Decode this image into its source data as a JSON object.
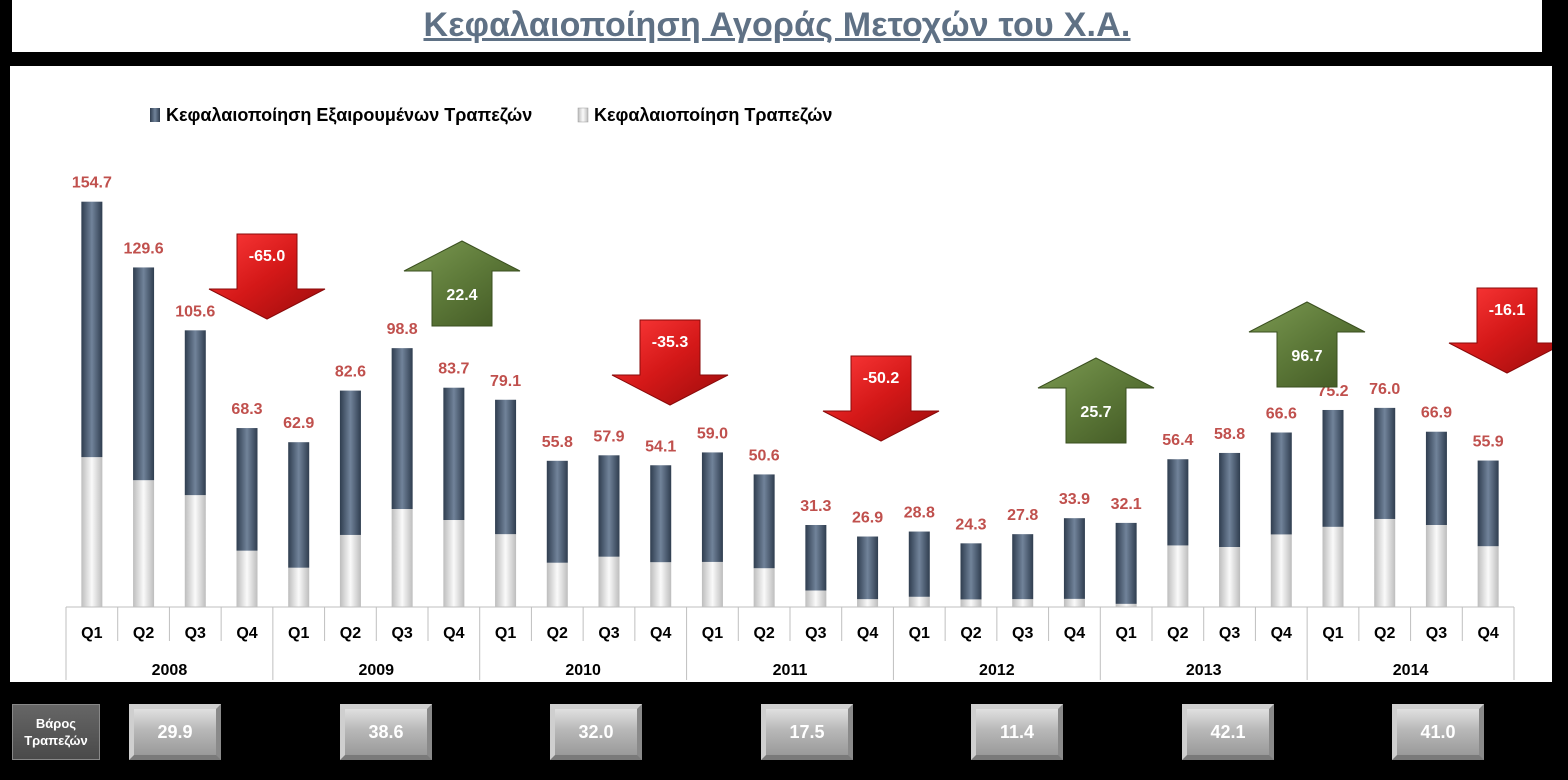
{
  "title": "Κεφαλαιοποίηση Αγοράς Μετοχών του Χ.Α.",
  "colors": {
    "series_dark": "#4f5f73",
    "series_light": "#e8e8e8",
    "value_label": "#c0504d",
    "arrow_down": "#d92020",
    "arrow_up": "#5f7f3a",
    "title": "#5f7185"
  },
  "chart_data": {
    "type": "bar",
    "stacked": true,
    "legend": [
      "Κεφαλαιοποίηση Εξαιρουμένων Τραπεζών",
      "Κεφαλαιοποίηση Τραπεζών"
    ],
    "legend_position": "top-left",
    "years": [
      "2008",
      "2009",
      "2010",
      "2011",
      "2012",
      "2013",
      "2014"
    ],
    "quarters": [
      "Q1",
      "Q2",
      "Q3",
      "Q4"
    ],
    "totals": [
      154.7,
      129.6,
      105.6,
      68.3,
      62.9,
      82.6,
      98.8,
      83.7,
      79.1,
      55.8,
      57.9,
      54.1,
      59.0,
      50.6,
      31.3,
      26.9,
      28.8,
      24.3,
      27.8,
      33.9,
      32.1,
      56.4,
      58.8,
      66.6,
      75.2,
      76.0,
      66.9,
      55.9
    ],
    "total_labels": [
      "154.7",
      "129.6",
      "105.6",
      "68.3",
      "62.9",
      "82.6",
      "98.8",
      "83.7",
      "79.1",
      "55.8",
      "57.9",
      "54.1",
      "59.0",
      "50.6",
      "31.3",
      "26.9",
      "28.8",
      "24.3",
      "27.8",
      "33.9",
      "32.1",
      "56.4",
      "58.8",
      "66.6",
      "75.2",
      "76.0",
      "66.9",
      "55.9"
    ],
    "series": [
      {
        "name": "Κεφαλαιοποίηση Εξαιρουμένων Τραπεζών",
        "values": [
          97.5,
          81.2,
          62.9,
          46.8,
          47.9,
          55.1,
          61.4,
          50.5,
          51.3,
          38.9,
          38.7,
          37.0,
          41.8,
          35.8,
          25.0,
          23.9,
          24.9,
          21.4,
          24.8,
          30.8,
          30.9,
          32.9,
          35.9,
          38.9,
          44.6,
          42.4,
          35.6,
          32.7
        ]
      },
      {
        "name": "Κεφαλαιοποίηση Τραπεζών",
        "values": [
          57.2,
          48.4,
          42.7,
          21.5,
          15.0,
          27.5,
          37.4,
          33.2,
          27.8,
          16.9,
          19.2,
          17.1,
          17.2,
          14.8,
          6.3,
          3.0,
          3.9,
          2.9,
          3.0,
          3.1,
          1.2,
          23.5,
          22.9,
          27.7,
          30.6,
          33.6,
          31.3,
          23.2
        ]
      }
    ],
    "ylim": [
      0,
      160
    ],
    "annual_changes": [
      {
        "year": "2008",
        "value": -65.0,
        "label": "-65.0",
        "direction": "down"
      },
      {
        "year": "2009",
        "value": 22.4,
        "label": "22.4",
        "direction": "up"
      },
      {
        "year": "2010",
        "value": -35.3,
        "label": "-35.3",
        "direction": "down"
      },
      {
        "year": "2011",
        "value": -50.2,
        "label": "-50.2",
        "direction": "down"
      },
      {
        "year": "2012",
        "value": 25.7,
        "label": "25.7",
        "direction": "up"
      },
      {
        "year": "2013",
        "value": 96.7,
        "label": "96.7",
        "direction": "up"
      },
      {
        "year": "2014",
        "value": -16.1,
        "label": "-16.1",
        "direction": "down"
      }
    ]
  },
  "bank_weight": {
    "label_line1": "Βάρος",
    "label_line2": "Τραπεζών",
    "values": [
      "29.9",
      "38.6",
      "32.0",
      "17.5",
      "11.4",
      "42.1",
      "41.0"
    ]
  }
}
